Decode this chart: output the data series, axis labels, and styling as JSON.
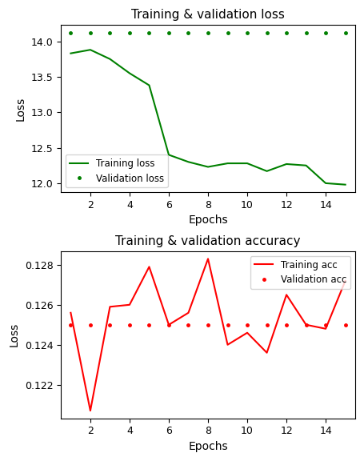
{
  "loss_epochs": [
    1,
    2,
    3,
    4,
    5,
    6,
    7,
    8,
    9,
    10,
    11,
    12,
    13,
    14,
    15
  ],
  "train_loss": [
    13.83,
    13.88,
    13.75,
    13.55,
    13.38,
    12.4,
    12.3,
    12.23,
    12.28,
    12.28,
    12.17,
    12.27,
    12.25,
    12.0,
    11.98
  ],
  "val_loss": [
    14.12,
    14.12,
    14.12,
    14.12,
    14.12,
    14.12,
    14.12,
    14.12,
    14.12,
    14.12,
    14.12,
    14.12,
    14.12,
    14.12,
    14.12
  ],
  "acc_epochs": [
    1,
    2,
    3,
    4,
    5,
    6,
    7,
    8,
    9,
    10,
    11,
    12,
    13,
    14,
    15
  ],
  "train_acc": [
    0.1256,
    0.1207,
    0.1259,
    0.126,
    0.1279,
    0.125,
    0.1256,
    0.1283,
    0.124,
    0.1246,
    0.1236,
    0.1265,
    0.125,
    0.1248,
    0.1272
  ],
  "val_acc": [
    0.125,
    0.125,
    0.125,
    0.125,
    0.125,
    0.125,
    0.125,
    0.125,
    0.125,
    0.125,
    0.125,
    0.125,
    0.125,
    0.125,
    0.125
  ],
  "loss_title": "Training & validation loss",
  "acc_title": "Training & validation accuracy",
  "xlabel": "Epochs",
  "ylabel": "Loss",
  "train_loss_label": "Training loss",
  "val_loss_label": "Validation loss",
  "train_acc_label": "Training acc",
  "val_acc_label": "Validation acc",
  "green_color": "#008000",
  "red_color": "#ff0000",
  "loss_xlim": [
    0.5,
    15.5
  ],
  "acc_xlim": [
    0.5,
    15.5
  ],
  "loss_xticks": [
    2,
    4,
    6,
    8,
    10,
    12,
    14
  ],
  "acc_xticks": [
    2,
    4,
    6,
    8,
    10,
    12,
    14
  ]
}
